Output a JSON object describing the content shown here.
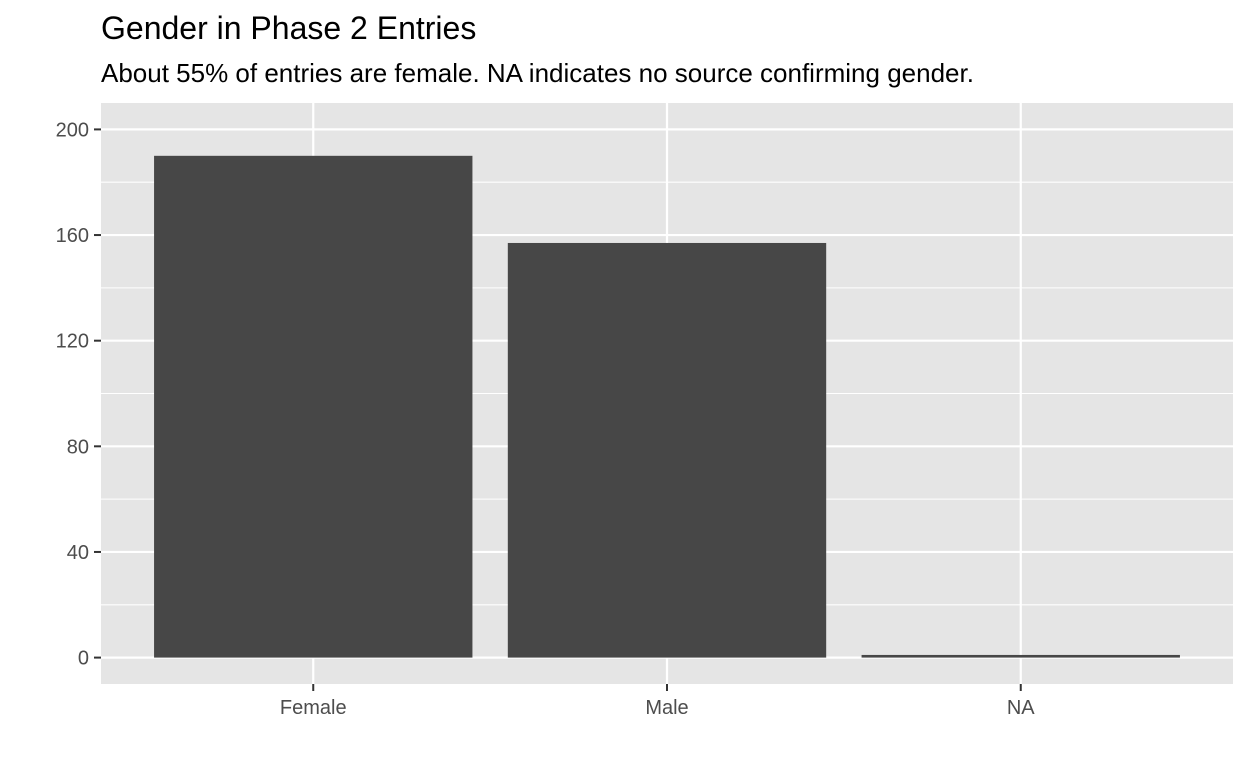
{
  "chart_data": {
    "type": "bar",
    "title": "Gender in Phase 2 Entries",
    "subtitle": "About 55% of entries are female. NA indicates no source confirming gender.",
    "xlabel": "",
    "ylabel": "",
    "categories": [
      "Female",
      "Male",
      "NA"
    ],
    "values": [
      190,
      157,
      1
    ],
    "ylim": [
      -10,
      210
    ],
    "yticks": [
      0,
      40,
      80,
      120,
      160,
      200
    ],
    "ytick_labels": [
      "0",
      "40",
      "80",
      "120",
      "160",
      "200"
    ],
    "grid": true,
    "legend": "none"
  },
  "colors": {
    "panel_background": "#e5e5e5",
    "grid_major": "#ffffff",
    "bar_fill": "#474747",
    "tick_text": "#4d4d4d",
    "tick_mark": "#333333"
  }
}
